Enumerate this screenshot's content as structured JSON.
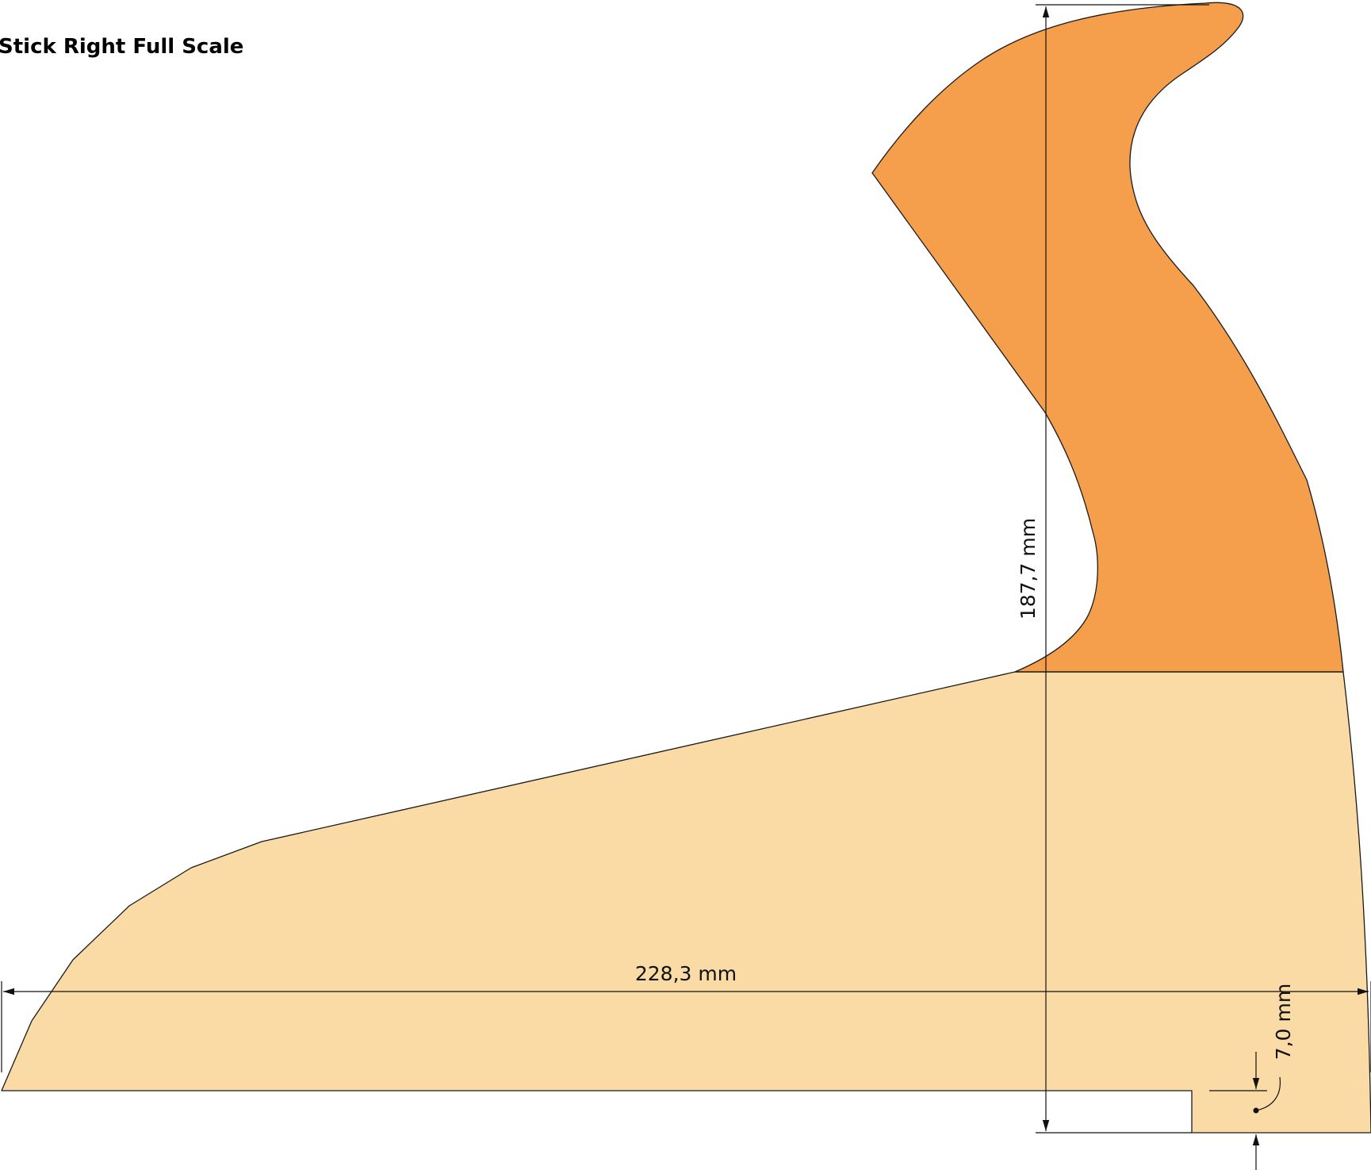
{
  "title": "Stick Right Full Scale",
  "dimensions": {
    "width_label": "228,3 mm",
    "height_label": "187,7 mm",
    "notch_label": "7,0 mm"
  },
  "colors": {
    "lower_part": "#FADBA5",
    "upper_part": "#F59F4C",
    "outline": "#1a1a1a",
    "background": "#FFFFFF"
  }
}
